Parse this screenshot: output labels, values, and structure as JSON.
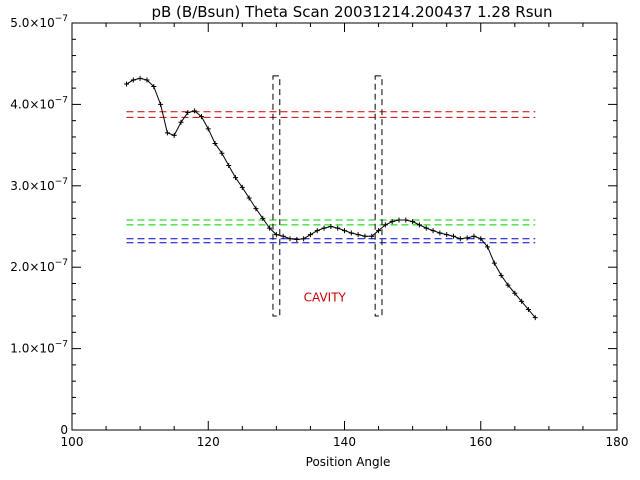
{
  "chart_data": {
    "type": "scatter",
    "title": "pB (B/Bsun) Theta Scan 20031214.200437 1.28 Rsun",
    "xlabel": "Position Angle",
    "ylabel": "",
    "xlim": [
      100,
      180
    ],
    "ylim": [
      0,
      5e-07
    ],
    "x_ticks": [
      {
        "value": 100,
        "label": "100"
      },
      {
        "value": 120,
        "label": "120"
      },
      {
        "value": 140,
        "label": "140"
      },
      {
        "value": 160,
        "label": "160"
      },
      {
        "value": 180,
        "label": "180"
      }
    ],
    "y_ticks": [
      {
        "value": 0,
        "label": "0",
        "exp": ""
      },
      {
        "value": 1e-07,
        "label": "1.0×10",
        "exp": "−7"
      },
      {
        "value": 2e-07,
        "label": "2.0×10",
        "exp": "−7"
      },
      {
        "value": 3e-07,
        "label": "3.0×10",
        "exp": "−7"
      },
      {
        "value": 4e-07,
        "label": "4.0×10",
        "exp": "−7"
      },
      {
        "value": 5e-07,
        "label": "5.0×10",
        "exp": "−7"
      }
    ],
    "grid": false,
    "series": [
      {
        "marker": "plus",
        "color": "#000000",
        "x": [
          108,
          109,
          110,
          111,
          112,
          113,
          114,
          115,
          116,
          117,
          118,
          119,
          120,
          121,
          122,
          123,
          124,
          125,
          126,
          127,
          128,
          129,
          130,
          131,
          132,
          133,
          134,
          135,
          136,
          137,
          138,
          139,
          140,
          141,
          142,
          143,
          144,
          145,
          146,
          147,
          148,
          149,
          150,
          151,
          152,
          153,
          154,
          155,
          156,
          157,
          158,
          159,
          160,
          161,
          162,
          163,
          164,
          165,
          166,
          167,
          168
        ],
        "y": [
          4.25e-07,
          4.3e-07,
          4.32e-07,
          4.3e-07,
          4.22e-07,
          4e-07,
          3.65e-07,
          3.62e-07,
          3.78e-07,
          3.9e-07,
          3.92e-07,
          3.85e-07,
          3.7e-07,
          3.52e-07,
          3.4e-07,
          3.25e-07,
          3.1e-07,
          2.98e-07,
          2.85e-07,
          2.72e-07,
          2.6e-07,
          2.48e-07,
          2.4e-07,
          2.38e-07,
          2.35e-07,
          2.34e-07,
          2.35e-07,
          2.4e-07,
          2.45e-07,
          2.48e-07,
          2.5e-07,
          2.48e-07,
          2.45e-07,
          2.42e-07,
          2.4e-07,
          2.38e-07,
          2.38e-07,
          2.45e-07,
          2.52e-07,
          2.56e-07,
          2.58e-07,
          2.58e-07,
          2.56e-07,
          2.52e-07,
          2.48e-07,
          2.45e-07,
          2.42e-07,
          2.4e-07,
          2.38e-07,
          2.35e-07,
          2.36e-07,
          2.38e-07,
          2.35e-07,
          2.25e-07,
          2.05e-07,
          1.9e-07,
          1.78e-07,
          1.68e-07,
          1.58e-07,
          1.48e-07,
          1.38e-07
        ]
      }
    ],
    "reference_lines": [
      {
        "y": 3.91e-07,
        "color": "#cc0000",
        "x_range": [
          108,
          168
        ]
      },
      {
        "y": 3.84e-07,
        "color": "#cc0000",
        "x_range": [
          108,
          168
        ]
      },
      {
        "y": 2.58e-07,
        "color": "#00cc00",
        "x_range": [
          108,
          168
        ]
      },
      {
        "y": 2.52e-07,
        "color": "#00cc00",
        "x_range": [
          108,
          168
        ]
      },
      {
        "y": 2.35e-07,
        "color": "#0000cc",
        "x_range": [
          108,
          168
        ]
      },
      {
        "y": 2.3e-07,
        "color": "#0000cc",
        "x_range": [
          108,
          168
        ]
      }
    ],
    "cavity_boxes": [
      {
        "x_range": [
          129.5,
          130.5
        ],
        "y_range": [
          1.4e-07,
          4.35e-07
        ]
      },
      {
        "x_range": [
          144.5,
          145.5
        ],
        "y_range": [
          1.4e-07,
          4.35e-07
        ]
      }
    ],
    "annotations": [
      {
        "text": "CAVITY",
        "x": 134,
        "y": 1.58e-07,
        "color": "#cc0000"
      }
    ]
  }
}
